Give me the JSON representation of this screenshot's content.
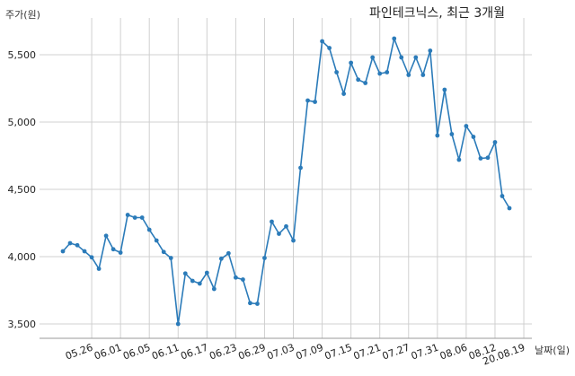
{
  "chart_data": {
    "type": "line",
    "title": "파인테크닉스, 최근 3개월",
    "ylabel": "주가(원)",
    "xlabel": "날짜(일)",
    "ylim": [
      3400,
      5800
    ],
    "yticks": [
      3500,
      4000,
      4500,
      5000,
      5500
    ],
    "ytick_labels": [
      "3,500",
      "4,000",
      "4,500",
      "5,000",
      "5,500"
    ],
    "xtick_labels": [
      "05.26",
      "06.01",
      "06.05",
      "06.11",
      "06.17",
      "06.23",
      "06.29",
      "07.03",
      "07.09",
      "07.15",
      "07.21",
      "07.27",
      "07.31",
      "08.06",
      "08.12",
      "20.08.19"
    ],
    "xtick_index": [
      4,
      8,
      12,
      16,
      20,
      24,
      28,
      32,
      36,
      40,
      44,
      48,
      52,
      56,
      60,
      64
    ],
    "grid": true,
    "color": "#2b7bb9",
    "values": [
      4040,
      4100,
      4085,
      4040,
      3995,
      3910,
      4155,
      4055,
      4030,
      4310,
      4290,
      4290,
      4200,
      4120,
      4035,
      3990,
      3500,
      3875,
      3820,
      3800,
      3880,
      3760,
      3985,
      4025,
      3845,
      3830,
      3655,
      3650,
      3990,
      4260,
      4170,
      4225,
      4120,
      4660,
      5160,
      5150,
      5600,
      5550,
      5370,
      5210,
      5440,
      5315,
      5290,
      5480,
      5360,
      5370,
      5620,
      5480,
      5350,
      5480,
      5350,
      5530,
      4900,
      5240,
      4910,
      4720,
      4970,
      4890,
      4730,
      4735,
      4850,
      4450,
      4360
    ]
  }
}
